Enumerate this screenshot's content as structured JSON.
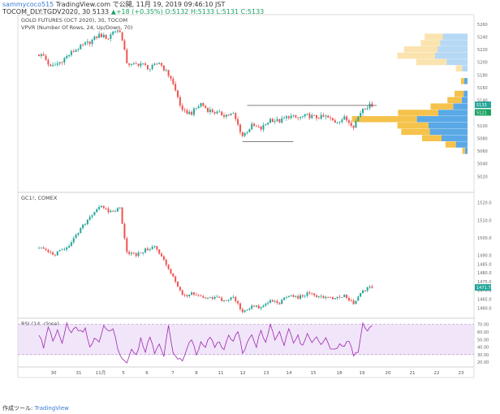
{
  "header": {
    "user": "sammycoco515",
    "published": " TradingView.com で公開, 11月 19, 2019 09:46:10 JST",
    "symbol_line": "TOCOM_DLY:TGDV2020, 30 5133",
    "change": "▲+18 (+0.35%)",
    "ohlc": "O:5132 H:5133 L:5131 C:5133"
  },
  "colors": {
    "up": "#26a69a",
    "down": "#ef5350",
    "rsi_line": "#9c27b0",
    "rsi_band": "#e7d3f5",
    "vp_up": "#5aa9e6",
    "vp_down": "#f5c24b"
  },
  "chart_data": [
    {
      "type": "candlestick",
      "title": "GOLD FUTURES (OCT 2020), 30, TOCOM",
      "subtitle": "VPVR (Number Of Rows, 24, Up/Down, 70)",
      "ylim": [
        5000,
        5270
      ],
      "y_ticks": [
        "5260",
        "5240",
        "5220",
        "5200",
        "5180",
        "5160",
        "5140",
        "5120",
        "5100",
        "5080",
        "5060",
        "5040",
        "5020"
      ],
      "last_price_labels": [
        "5133",
        "5121"
      ],
      "anchors": [
        [
          0,
          5212
        ],
        [
          2,
          5210
        ],
        [
          5,
          5192
        ],
        [
          9,
          5200
        ],
        [
          14,
          5215
        ],
        [
          18,
          5225
        ],
        [
          22,
          5232
        ],
        [
          26,
          5243
        ],
        [
          30,
          5238
        ],
        [
          32,
          5249
        ],
        [
          35,
          5250
        ],
        [
          38,
          5200
        ],
        [
          40,
          5195
        ],
        [
          44,
          5198
        ],
        [
          48,
          5190
        ],
        [
          52,
          5200
        ],
        [
          57,
          5175
        ],
        [
          60,
          5145
        ],
        [
          62,
          5122
        ],
        [
          66,
          5120
        ],
        [
          70,
          5135
        ],
        [
          73,
          5125
        ],
        [
          77,
          5120
        ],
        [
          80,
          5117
        ],
        [
          84,
          5118
        ],
        [
          88,
          5084
        ],
        [
          92,
          5100
        ],
        [
          96,
          5095
        ],
        [
          100,
          5110
        ],
        [
          104,
          5107
        ],
        [
          108,
          5115
        ],
        [
          112,
          5112
        ],
        [
          116,
          5116
        ],
        [
          120,
          5113
        ],
        [
          124,
          5114
        ],
        [
          128,
          5106
        ],
        [
          132,
          5112
        ],
        [
          136,
          5100
        ],
        [
          140,
          5128
        ],
        [
          144,
          5133
        ]
      ],
      "support_line": 5075,
      "resistance_line": 5132,
      "volume_profile": [
        {
          "price": 5240,
          "up": 0.38,
          "down": 0.28
        },
        {
          "price": 5230,
          "up": 0.42,
          "down": 0.3
        },
        {
          "price": 5220,
          "up": 0.46,
          "down": 0.52
        },
        {
          "price": 5210,
          "up": 0.5,
          "down": 0.58
        },
        {
          "price": 5200,
          "up": 0.32,
          "down": 0.47
        },
        {
          "price": 5190,
          "up": 0.08,
          "down": 0.1
        },
        {
          "price": 5170,
          "up": 0.05,
          "down": 0.05
        },
        {
          "price": 5150,
          "up": 0.06,
          "down": 0.14
        },
        {
          "price": 5140,
          "up": 0.09,
          "down": 0.22
        },
        {
          "price": 5130,
          "up": 0.22,
          "down": 0.35
        },
        {
          "price": 5120,
          "up": 0.45,
          "down": 0.62
        },
        {
          "price": 5110,
          "up": 0.78,
          "down": 1.0
        },
        {
          "price": 5100,
          "up": 0.6,
          "down": 0.48
        },
        {
          "price": 5090,
          "up": 0.58,
          "down": 0.44
        },
        {
          "price": 5080,
          "up": 0.4,
          "down": 0.3
        },
        {
          "price": 5070,
          "up": 0.18,
          "down": 0.16
        },
        {
          "price": 5060,
          "up": 0.04,
          "down": 0.04
        }
      ]
    },
    {
      "type": "candlestick",
      "title": "GC1!, COMEX",
      "ylim": [
        1456,
        1524
      ],
      "y_ticks": [
        "1520.0",
        "1510.0",
        "1500.0",
        "1490.0",
        "1485.0",
        "1480.0",
        "1475.0",
        "1470.0",
        "1465.0",
        "1460.0"
      ],
      "last_price_label": "1471.7",
      "anchors": [
        [
          0,
          1494
        ],
        [
          3,
          1493
        ],
        [
          6,
          1490
        ],
        [
          10,
          1493
        ],
        [
          14,
          1497
        ],
        [
          18,
          1505
        ],
        [
          22,
          1512
        ],
        [
          26,
          1518
        ],
        [
          30,
          1515
        ],
        [
          32,
          1515
        ],
        [
          35,
          1517
        ],
        [
          38,
          1492
        ],
        [
          42,
          1490
        ],
        [
          46,
          1493
        ],
        [
          50,
          1495
        ],
        [
          54,
          1487
        ],
        [
          58,
          1478
        ],
        [
          62,
          1467
        ],
        [
          66,
          1468
        ],
        [
          70,
          1466
        ],
        [
          73,
          1465
        ],
        [
          77,
          1466
        ],
        [
          80,
          1464
        ],
        [
          84,
          1466
        ],
        [
          88,
          1458
        ],
        [
          92,
          1461
        ],
        [
          96,
          1460
        ],
        [
          100,
          1464
        ],
        [
          104,
          1463
        ],
        [
          108,
          1467
        ],
        [
          112,
          1466
        ],
        [
          116,
          1468
        ],
        [
          120,
          1467
        ],
        [
          124,
          1466
        ],
        [
          128,
          1465
        ],
        [
          132,
          1467
        ],
        [
          136,
          1462
        ],
        [
          140,
          1470
        ],
        [
          144,
          1472
        ]
      ]
    },
    {
      "type": "line",
      "title": "RSI (14, close)",
      "ylim": [
        18,
        74
      ],
      "y_ticks": [
        "70.00",
        "60.00",
        "50.00",
        "40.00",
        "30.00",
        "20.00"
      ],
      "band": [
        30,
        70
      ],
      "anchors": [
        [
          0,
          55
        ],
        [
          2,
          40
        ],
        [
          4,
          68
        ],
        [
          6,
          48
        ],
        [
          8,
          60
        ],
        [
          10,
          45
        ],
        [
          12,
          70
        ],
        [
          14,
          58
        ],
        [
          16,
          66
        ],
        [
          18,
          62
        ],
        [
          20,
          63
        ],
        [
          22,
          40
        ],
        [
          24,
          52
        ],
        [
          26,
          44
        ],
        [
          28,
          68
        ],
        [
          30,
          60
        ],
        [
          32,
          64
        ],
        [
          34,
          40
        ],
        [
          36,
          25
        ],
        [
          38,
          20
        ],
        [
          40,
          35
        ],
        [
          42,
          28
        ],
        [
          44,
          50
        ],
        [
          46,
          35
        ],
        [
          48,
          55
        ],
        [
          50,
          30
        ],
        [
          52,
          45
        ],
        [
          54,
          28
        ],
        [
          56,
          70
        ],
        [
          58,
          30
        ],
        [
          60,
          25
        ],
        [
          62,
          22
        ],
        [
          64,
          40
        ],
        [
          66,
          50
        ],
        [
          68,
          32
        ],
        [
          70,
          45
        ],
        [
          72,
          40
        ],
        [
          74,
          55
        ],
        [
          76,
          42
        ],
        [
          78,
          48
        ],
        [
          80,
          35
        ],
        [
          82,
          55
        ],
        [
          84,
          45
        ],
        [
          86,
          62
        ],
        [
          88,
          30
        ],
        [
          90,
          48
        ],
        [
          92,
          55
        ],
        [
          94,
          40
        ],
        [
          96,
          65
        ],
        [
          98,
          45
        ],
        [
          100,
          68
        ],
        [
          102,
          50
        ],
        [
          104,
          60
        ],
        [
          106,
          42
        ],
        [
          108,
          62
        ],
        [
          110,
          48
        ],
        [
          112,
          55
        ],
        [
          114,
          40
        ],
        [
          116,
          58
        ],
        [
          118,
          48
        ],
        [
          120,
          55
        ],
        [
          122,
          42
        ],
        [
          124,
          50
        ],
        [
          126,
          35
        ],
        [
          128,
          38
        ],
        [
          130,
          45
        ],
        [
          132,
          40
        ],
        [
          134,
          50
        ],
        [
          136,
          28
        ],
        [
          138,
          33
        ],
        [
          140,
          70
        ],
        [
          142,
          62
        ],
        [
          144,
          70
        ]
      ]
    }
  ],
  "x_axis": {
    "labels": [
      "30",
      "31",
      "11月",
      "5",
      "6",
      "7",
      "8",
      "11",
      "12",
      "13",
      "14",
      "15",
      "18",
      "19",
      "20",
      "21",
      "22",
      "23"
    ]
  },
  "footer": {
    "made_with": "作成ツール: ",
    "brand": "TradingView"
  }
}
